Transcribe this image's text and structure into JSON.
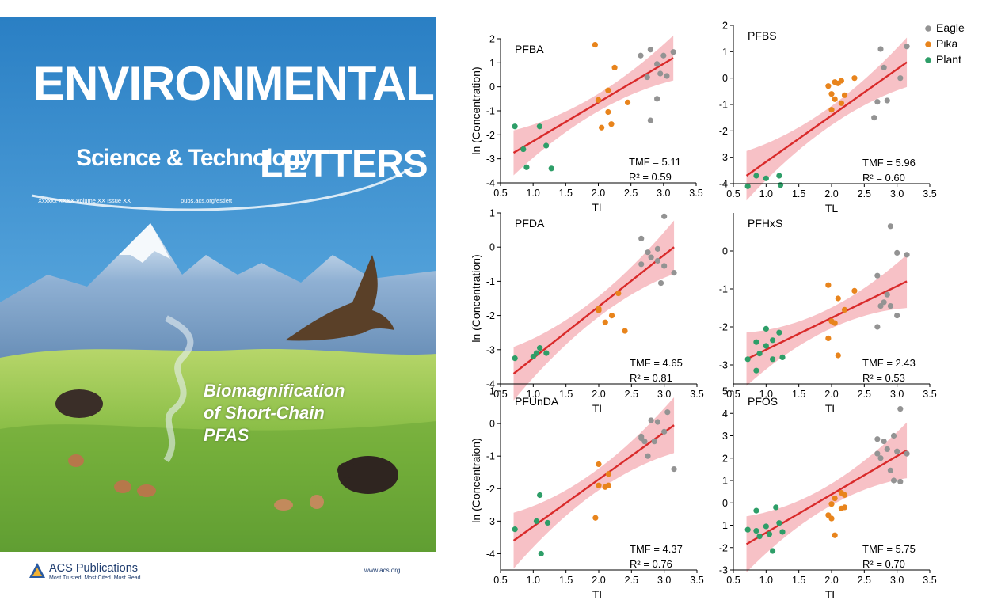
{
  "cover": {
    "title_top": "ENVIRONMENTAL",
    "title_sub": "Science & Technology",
    "title_letters": "LETTERS",
    "issue_line": "Xxxxxx XXXX  Volume XX  Issue XX",
    "url": "pubs.acs.org/estlett",
    "headline": [
      "Biomagnification",
      "of Short-Chain",
      "PFAS"
    ],
    "publisher": "ACS Publications",
    "publisher_tagline": "Most Trusted. Most Cited. Most Read.",
    "website": "www.acs.org",
    "colors": {
      "sky": "#2e86c8",
      "grass": "#8ec24a",
      "mountain": "#9cb8d6"
    }
  },
  "legend": [
    {
      "label": "Eagle",
      "color": "#939393"
    },
    {
      "label": "Pika",
      "color": "#e8841c"
    },
    {
      "label": "Plant",
      "color": "#2e9e68"
    }
  ],
  "chart_data": [
    {
      "type": "scatter",
      "title": "PFBA",
      "xlabel": "TL",
      "ylabel": "ln (Concentration)",
      "xlim": [
        0.5,
        3.5
      ],
      "ylim": [
        -4,
        2
      ],
      "xticks": [
        "0.5",
        "1.0",
        "1.5",
        "2.0",
        "2.5",
        "3.0",
        "3.5"
      ],
      "yticks": [
        "-4",
        "-3",
        "-2",
        "-1",
        "0",
        "1",
        "2"
      ],
      "tmf": "TMF = 5.11",
      "r2": "R² = 0.59",
      "fit": [
        [
          0.7,
          -2.75
        ],
        [
          3.15,
          1.2
        ]
      ],
      "series": [
        {
          "name": "Eagle",
          "points": [
            [
              2.65,
              1.3
            ],
            [
              2.8,
              1.55
            ],
            [
              2.9,
              0.95
            ],
            [
              3.0,
              1.3
            ],
            [
              3.15,
              1.45
            ],
            [
              2.75,
              0.4
            ],
            [
              2.95,
              0.55
            ],
            [
              3.05,
              0.45
            ],
            [
              2.9,
              -0.5
            ],
            [
              2.8,
              -1.4
            ]
          ]
        },
        {
          "name": "Pika",
          "points": [
            [
              1.95,
              1.75
            ],
            [
              2.25,
              0.8
            ],
            [
              2.15,
              -0.15
            ],
            [
              2.0,
              -0.55
            ],
            [
              2.05,
              -1.7
            ],
            [
              2.2,
              -1.55
            ],
            [
              2.15,
              -1.05
            ],
            [
              2.45,
              -0.65
            ]
          ]
        },
        {
          "name": "Plant",
          "points": [
            [
              0.72,
              -1.65
            ],
            [
              0.9,
              -3.35
            ],
            [
              0.85,
              -2.6
            ],
            [
              1.1,
              -1.65
            ],
            [
              1.2,
              -2.45
            ],
            [
              1.28,
              -3.4
            ]
          ]
        }
      ]
    },
    {
      "type": "scatter",
      "title": "PFBS",
      "xlabel": "TL",
      "ylabel": "",
      "xlim": [
        0.5,
        3.5
      ],
      "ylim": [
        -4,
        2
      ],
      "xticks": [
        "0.5",
        "1.0",
        "1.5",
        "2.0",
        "2.5",
        "3.0",
        "3.5"
      ],
      "yticks": [
        "-4",
        "-3",
        "-2",
        "-1",
        "0",
        "1",
        "2"
      ],
      "tmf": "TMF = 5.96",
      "r2": "R² = 0.60",
      "fit": [
        [
          0.7,
          -3.7
        ],
        [
          3.15,
          0.6
        ]
      ],
      "series": [
        {
          "name": "Eagle",
          "points": [
            [
              2.75,
              1.1
            ],
            [
              3.15,
              1.2
            ],
            [
              2.8,
              0.4
            ],
            [
              3.05,
              0.0
            ],
            [
              2.85,
              -0.85
            ],
            [
              2.7,
              -0.9
            ],
            [
              2.65,
              -1.5
            ]
          ]
        },
        {
          "name": "Pika",
          "points": [
            [
              1.95,
              -0.3
            ],
            [
              2.05,
              -0.15
            ],
            [
              2.1,
              -0.2
            ],
            [
              2.15,
              -0.1
            ],
            [
              2.0,
              -0.6
            ],
            [
              2.05,
              -0.8
            ],
            [
              2.2,
              -0.65
            ],
            [
              2.35,
              0.0
            ],
            [
              2.15,
              -0.95
            ],
            [
              2.0,
              -1.2
            ]
          ]
        },
        {
          "name": "Plant",
          "points": [
            [
              0.72,
              -4.1
            ],
            [
              0.85,
              -3.7
            ],
            [
              1.0,
              -3.8
            ],
            [
              1.2,
              -3.7
            ],
            [
              1.22,
              -4.05
            ]
          ]
        }
      ]
    },
    {
      "type": "scatter",
      "title": "PFDA",
      "xlabel": "TL",
      "ylabel": "ln (Concentration)",
      "xlim": [
        0.5,
        3.5
      ],
      "ylim": [
        -4,
        1
      ],
      "xticks": [
        "0.5",
        "1.0",
        "1.5",
        "2.0",
        "2.5",
        "3.0",
        "3.5"
      ],
      "yticks": [
        "-4",
        "-3",
        "-2",
        "-1",
        "0",
        "1"
      ],
      "tmf": "TMF = 4.65",
      "r2": "R² = 0.81",
      "fit": [
        [
          0.7,
          -3.7
        ],
        [
          3.15,
          0.0
        ]
      ],
      "series": [
        {
          "name": "Eagle",
          "points": [
            [
              3.0,
              0.9
            ],
            [
              2.65,
              0.25
            ],
            [
              2.75,
              -0.15
            ],
            [
              2.9,
              -0.05
            ],
            [
              2.8,
              -0.3
            ],
            [
              2.65,
              -0.5
            ],
            [
              2.9,
              -0.4
            ],
            [
              3.15,
              -0.75
            ],
            [
              2.95,
              -1.05
            ],
            [
              3.0,
              -0.55
            ]
          ]
        },
        {
          "name": "Pika",
          "points": [
            [
              2.0,
              -1.8
            ],
            [
              2.1,
              -2.2
            ],
            [
              2.0,
              -1.85
            ],
            [
              2.2,
              -2.0
            ],
            [
              2.3,
              -1.35
            ],
            [
              2.4,
              -2.45
            ]
          ]
        },
        {
          "name": "Plant",
          "points": [
            [
              0.72,
              -3.25
            ],
            [
              1.05,
              -3.1
            ],
            [
              1.1,
              -2.95
            ],
            [
              1.2,
              -3.1
            ],
            [
              1.0,
              -3.2
            ]
          ]
        }
      ]
    },
    {
      "type": "scatter",
      "title": "PFHxS",
      "xlabel": "TL",
      "ylabel": "",
      "xlim": [
        0.5,
        3.5
      ],
      "ylim": [
        -3.5,
        1
      ],
      "xticks": [
        "0.5",
        "1.0",
        "1.5",
        "2.0",
        "2.5",
        "3.0",
        "3.5"
      ],
      "yticks": [
        "-3",
        "-2",
        "-1",
        "0"
      ],
      "tmf": "TMF = 2.43",
      "r2": "R² = 0.53",
      "fit": [
        [
          0.7,
          -2.85
        ],
        [
          3.15,
          -0.8
        ]
      ],
      "series": [
        {
          "name": "Eagle",
          "points": [
            [
              2.9,
              0.65
            ],
            [
              3.0,
              -0.05
            ],
            [
              3.15,
              -0.1
            ],
            [
              2.7,
              -0.65
            ],
            [
              2.85,
              -1.15
            ],
            [
              2.75,
              -1.45
            ],
            [
              2.8,
              -1.35
            ],
            [
              3.0,
              -1.7
            ],
            [
              2.7,
              -2.0
            ],
            [
              2.9,
              -1.45
            ]
          ]
        },
        {
          "name": "Pika",
          "points": [
            [
              1.95,
              -0.9
            ],
            [
              2.1,
              -1.25
            ],
            [
              2.35,
              -1.05
            ],
            [
              2.2,
              -1.55
            ],
            [
              2.0,
              -1.85
            ],
            [
              2.05,
              -1.9
            ],
            [
              1.95,
              -2.3
            ],
            [
              2.1,
              -2.75
            ]
          ]
        },
        {
          "name": "Plant",
          "points": [
            [
              0.72,
              -2.85
            ],
            [
              0.85,
              -2.4
            ],
            [
              0.9,
              -2.7
            ],
            [
              0.85,
              -3.15
            ],
            [
              1.0,
              -2.05
            ],
            [
              1.1,
              -2.35
            ],
            [
              1.2,
              -2.15
            ],
            [
              1.1,
              -2.85
            ],
            [
              1.25,
              -2.8
            ],
            [
              1.0,
              -2.5
            ]
          ]
        }
      ]
    },
    {
      "type": "scatter",
      "title": "PFUnDA",
      "xlabel": "TL",
      "ylabel": "ln (Concentraion)",
      "xlim": [
        0.5,
        3.5
      ],
      "ylim": [
        -4.5,
        1
      ],
      "xticks": [
        "0.5",
        "1.0",
        "1.5",
        "2.0",
        "2.5",
        "3.0",
        "3.5"
      ],
      "yticks": [
        "-4",
        "-3",
        "-2",
        "-1",
        "0",
        "1"
      ],
      "tmf": "TMF = 4.37",
      "r2": "R² = 0.76",
      "fit": [
        [
          0.7,
          -3.6
        ],
        [
          3.15,
          -0.05
        ]
      ],
      "series": [
        {
          "name": "Eagle",
          "points": [
            [
              3.05,
              0.35
            ],
            [
              2.8,
              0.1
            ],
            [
              2.9,
              0.05
            ],
            [
              2.65,
              -0.4
            ],
            [
              2.7,
              -0.55
            ],
            [
              2.85,
              -0.55
            ],
            [
              3.0,
              -0.25
            ],
            [
              2.75,
              -1.0
            ],
            [
              2.65,
              -0.45
            ],
            [
              3.15,
              -1.4
            ]
          ]
        },
        {
          "name": "Pika",
          "points": [
            [
              2.0,
              -1.25
            ],
            [
              2.15,
              -1.55
            ],
            [
              2.0,
              -1.9
            ],
            [
              2.1,
              -1.95
            ],
            [
              2.15,
              -1.9
            ],
            [
              1.95,
              -2.9
            ]
          ]
        },
        {
          "name": "Plant",
          "points": [
            [
              0.72,
              -3.25
            ],
            [
              1.05,
              -3.0
            ],
            [
              1.1,
              -2.2
            ],
            [
              1.22,
              -3.05
            ],
            [
              1.12,
              -4.0
            ]
          ]
        }
      ]
    },
    {
      "type": "scatter",
      "title": "PFOS",
      "xlabel": "TL",
      "ylabel": "",
      "xlim": [
        0.5,
        3.5
      ],
      "ylim": [
        -3,
        5
      ],
      "xticks": [
        "0.5",
        "1.0",
        "1.5",
        "2.0",
        "2.5",
        "3.0",
        "3.5"
      ],
      "yticks": [
        "-3",
        "-2",
        "-1",
        "0",
        "1",
        "2",
        "3",
        "4",
        "5"
      ],
      "tmf": "TMF = 5.75",
      "r2": "R² = 0.70",
      "fit": [
        [
          0.7,
          -1.85
        ],
        [
          3.15,
          2.35
        ]
      ],
      "series": [
        {
          "name": "Eagle",
          "points": [
            [
              3.05,
              4.2
            ],
            [
              2.7,
              2.85
            ],
            [
              2.8,
              2.75
            ],
            [
              2.95,
              3.0
            ],
            [
              2.85,
              2.4
            ],
            [
              2.7,
              2.2
            ],
            [
              2.75,
              2.0
            ],
            [
              3.0,
              2.3
            ],
            [
              3.15,
              2.2
            ],
            [
              2.9,
              1.45
            ],
            [
              2.95,
              1.0
            ],
            [
              3.05,
              0.95
            ]
          ]
        },
        {
          "name": "Pika",
          "points": [
            [
              2.05,
              0.2
            ],
            [
              2.15,
              0.45
            ],
            [
              2.2,
              0.35
            ],
            [
              2.0,
              -0.05
            ],
            [
              2.15,
              -0.25
            ],
            [
              2.2,
              -0.2
            ],
            [
              1.95,
              -0.55
            ],
            [
              2.0,
              -0.7
            ],
            [
              2.05,
              -1.45
            ]
          ]
        },
        {
          "name": "Plant",
          "points": [
            [
              0.72,
              -1.2
            ],
            [
              0.85,
              -0.35
            ],
            [
              1.0,
              -1.05
            ],
            [
              1.15,
              -0.2
            ],
            [
              0.9,
              -1.5
            ],
            [
              1.05,
              -1.4
            ],
            [
              1.25,
              -1.3
            ],
            [
              1.2,
              -0.9
            ],
            [
              1.1,
              -2.15
            ],
            [
              0.85,
              -1.25
            ]
          ]
        }
      ]
    }
  ]
}
